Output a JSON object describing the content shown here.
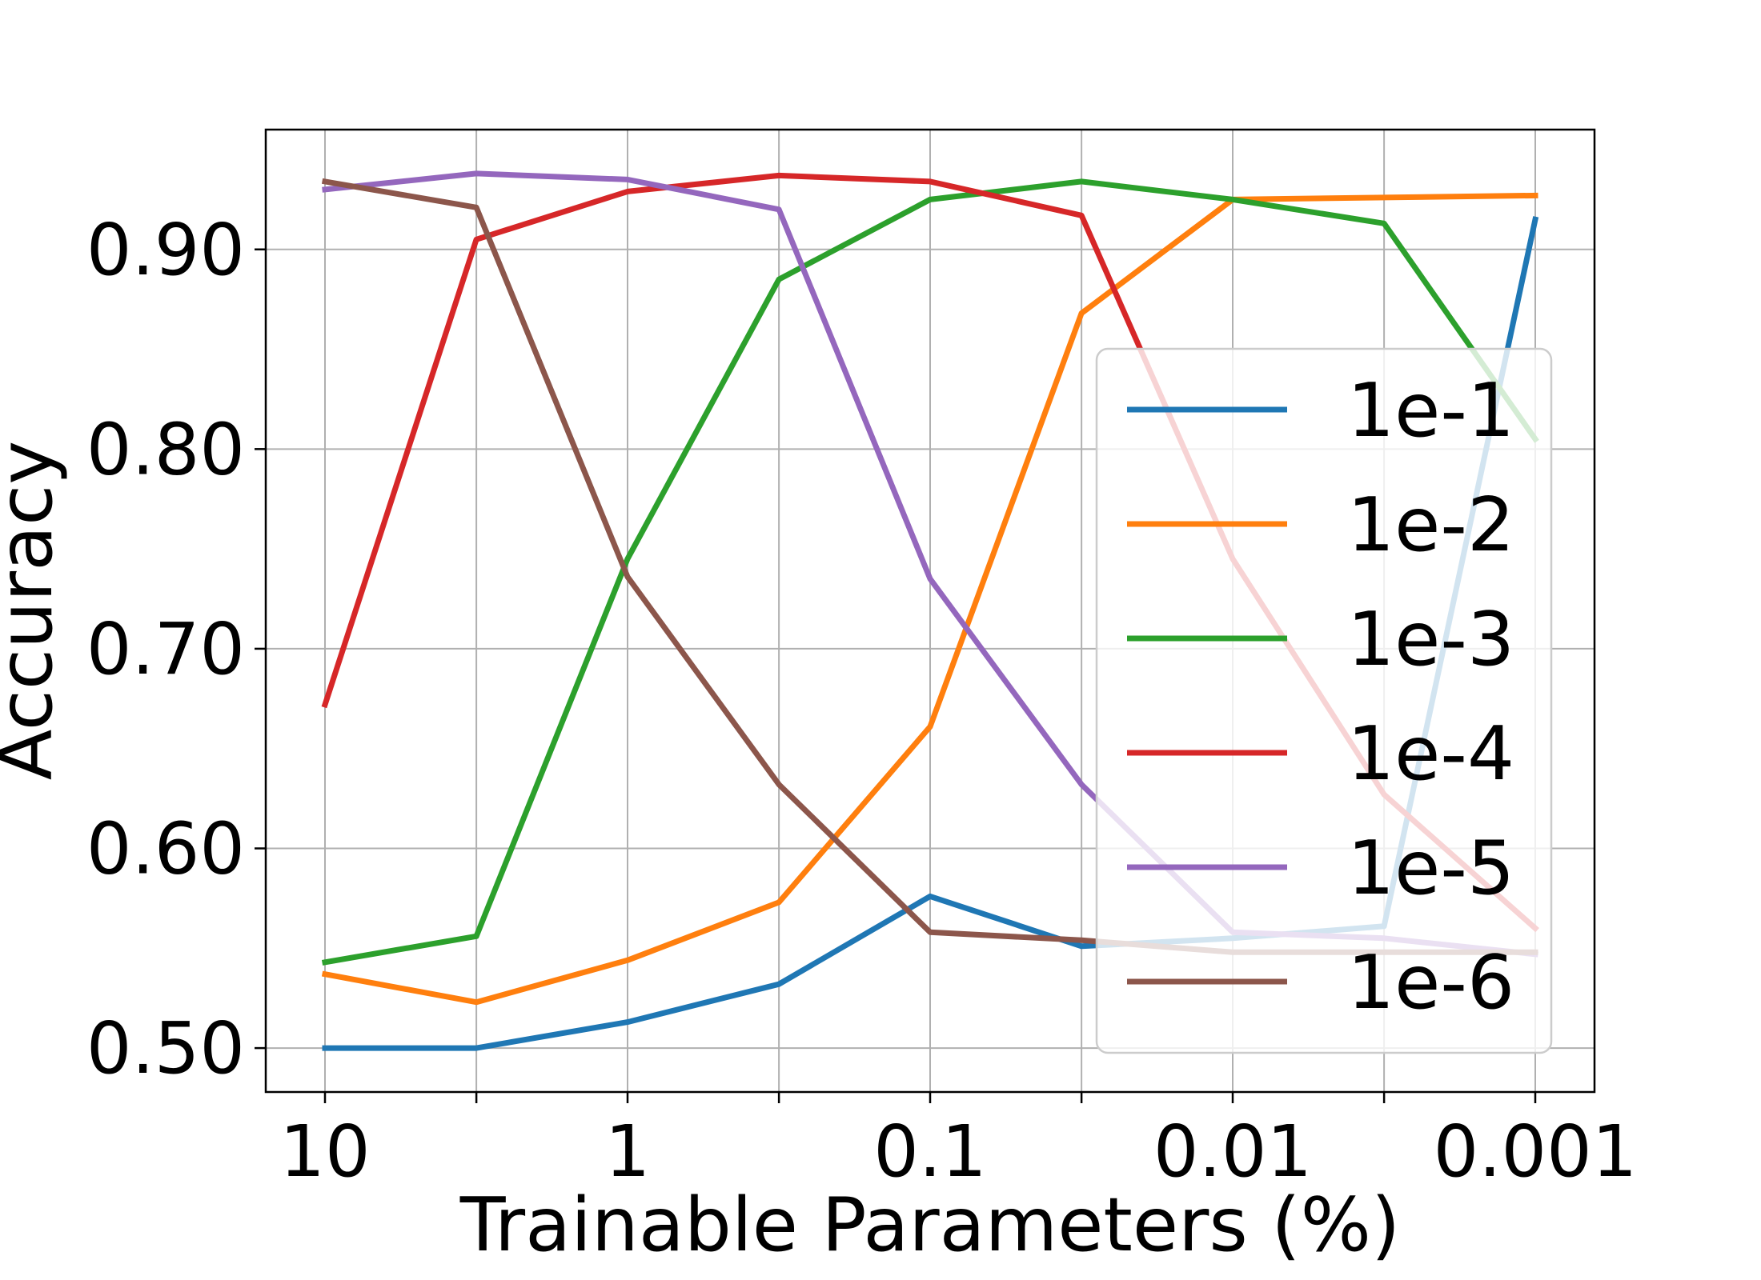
{
  "chart_data": {
    "type": "line",
    "title": "",
    "xlabel": "Trainable Parameters (%)",
    "ylabel": "Accuracy",
    "x_scale": "log",
    "x_direction": "decreasing",
    "x": [
      10,
      3.16,
      1,
      0.316,
      0.1,
      0.0316,
      0.01,
      0.00316,
      0.001
    ],
    "x_tick_values": [
      10,
      1,
      0.1,
      0.01,
      0.001
    ],
    "x_tick_labels": [
      "10",
      "1",
      "0.1",
      "0.01",
      "0.001"
    ],
    "y_ticks": [
      0.5,
      0.6,
      0.7,
      0.8,
      0.9
    ],
    "y_tick_labels": [
      "0.50",
      "0.60",
      "0.70",
      "0.80",
      "0.90"
    ],
    "ylim": [
      0.478,
      0.96
    ],
    "grid": true,
    "legend_position": "lower-right",
    "series": [
      {
        "name": "1e-1",
        "color": "#1f77b4",
        "values": [
          0.5,
          0.5,
          0.513,
          0.532,
          0.576,
          0.551,
          0.555,
          0.561,
          0.915
        ]
      },
      {
        "name": "1e-2",
        "color": "#ff7f0e",
        "values": [
          0.537,
          0.523,
          0.544,
          0.573,
          0.661,
          0.868,
          0.925,
          0.926,
          0.927
        ]
      },
      {
        "name": "1e-3",
        "color": "#2ca02c",
        "values": [
          0.543,
          0.556,
          0.745,
          0.885,
          0.925,
          0.934,
          0.925,
          0.913,
          0.805
        ]
      },
      {
        "name": "1e-4",
        "color": "#d62728",
        "values": [
          0.672,
          0.905,
          0.929,
          0.937,
          0.934,
          0.917,
          0.745,
          0.627,
          0.56
        ]
      },
      {
        "name": "1e-5",
        "color": "#9467bd",
        "values": [
          0.93,
          0.938,
          0.935,
          0.92,
          0.735,
          0.632,
          0.558,
          0.555,
          0.547
        ]
      },
      {
        "name": "1e-6",
        "color": "#8c564b",
        "values": [
          0.934,
          0.921,
          0.736,
          0.632,
          0.558,
          0.554,
          0.548,
          0.548,
          0.548
        ]
      }
    ]
  }
}
